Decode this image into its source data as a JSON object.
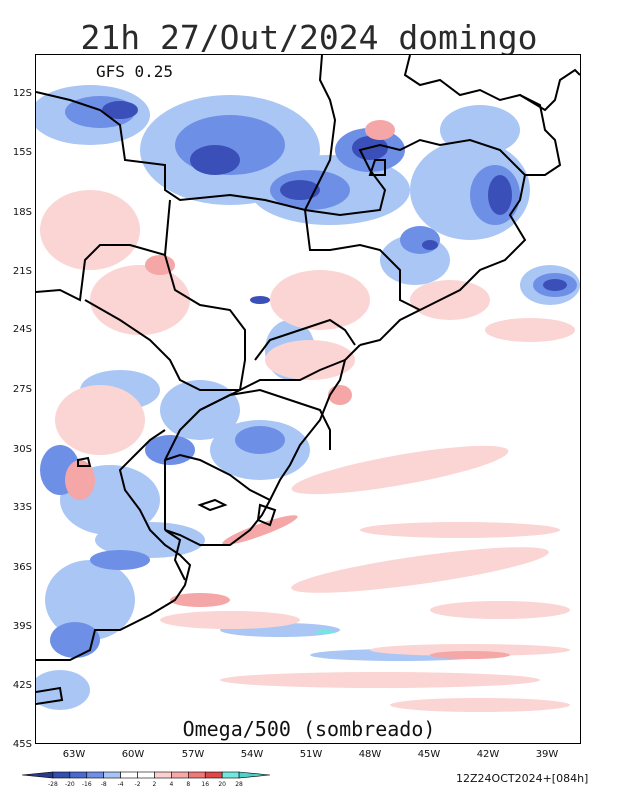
{
  "title": "21h 27/Out/2024 domingo",
  "model": "GFS 0.25",
  "field": "Omega/500 (sombreado)",
  "run": "12Z24OCT2024+[084h]",
  "lat_labels": [
    "12S",
    "15S",
    "18S",
    "21S",
    "24S",
    "27S",
    "30S",
    "33S",
    "36S",
    "39S",
    "42S",
    "45S"
  ],
  "lon_labels": [
    "63W",
    "60W",
    "57W",
    "54W",
    "51W",
    "48W",
    "45W",
    "42W",
    "39W"
  ],
  "colorbar": {
    "ticks": [
      "-28",
      "-20",
      "-16",
      "-8",
      "-4",
      "-2",
      "2",
      "4",
      "8",
      "16",
      "20",
      "28"
    ],
    "colors": [
      "#2a3a8a",
      "#3350b0",
      "#4a6ad0",
      "#6d8fe8",
      "#a8c4f4",
      "#ffffff",
      "#ffffff",
      "#fbd0d0",
      "#f7a8a8",
      "#f07878",
      "#e04848",
      "#70e8e0",
      "#50d0c8"
    ]
  },
  "palette": {
    "neg_strong": "#3a4fb8",
    "neg_mid": "#6e8fe6",
    "neg_light": "#a9c6f5",
    "pos_light": "#fbd4d4",
    "pos_mid": "#f5a6a6",
    "pos_strong": "#e86868"
  }
}
